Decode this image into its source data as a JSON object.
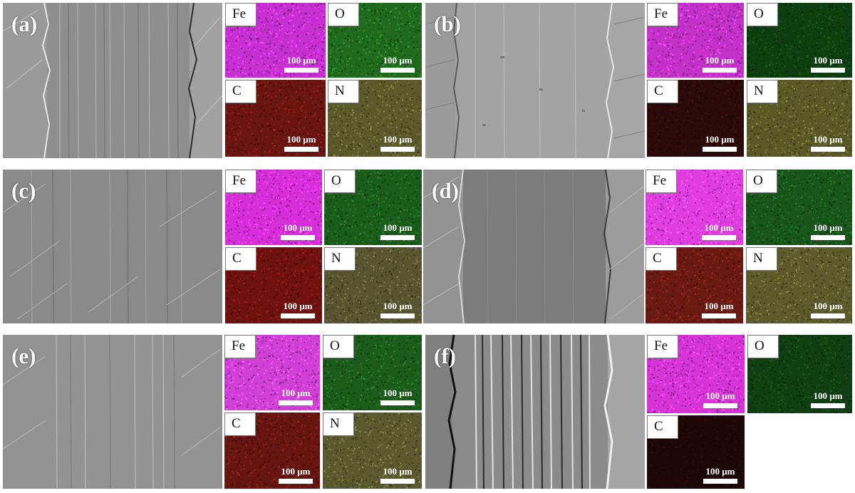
{
  "figure": {
    "panels": [
      {
        "label": "(a)",
        "maps": [
          {
            "element": "Fe",
            "color": "#c62fd2"
          },
          {
            "element": "O",
            "color": "#1f6a1c"
          },
          {
            "element": "C",
            "color": "#6a1510"
          },
          {
            "element": "N",
            "color": "#5b5a2a"
          }
        ]
      },
      {
        "label": "(b)",
        "maps": [
          {
            "element": "Fe",
            "color": "#c331c9"
          },
          {
            "element": "O",
            "color": "#0e3f10"
          },
          {
            "element": "C",
            "color": "#2b0a0a"
          },
          {
            "element": "N",
            "color": "#5a5826"
          }
        ]
      },
      {
        "label": "(c)",
        "maps": [
          {
            "element": "Fe",
            "color": "#d62ed8"
          },
          {
            "element": "O",
            "color": "#1a5c1a"
          },
          {
            "element": "C",
            "color": "#6e120f"
          },
          {
            "element": "N",
            "color": "#575530"
          }
        ]
      },
      {
        "label": "(d)",
        "maps": [
          {
            "element": "Fe",
            "color": "#e03de0"
          },
          {
            "element": "O",
            "color": "#17551a"
          },
          {
            "element": "C",
            "color": "#6a1a12"
          },
          {
            "element": "N",
            "color": "#5d5a2c"
          }
        ]
      },
      {
        "label": "(e)",
        "maps": [
          {
            "element": "Fe",
            "color": "#d03fd6"
          },
          {
            "element": "O",
            "color": "#1b5c1a"
          },
          {
            "element": "C",
            "color": "#661510"
          },
          {
            "element": "N",
            "color": "#5b5a2e"
          }
        ]
      },
      {
        "label": "(f)",
        "maps": [
          {
            "element": "Fe",
            "color": "#d634d6"
          },
          {
            "element": "O",
            "color": "#103f12"
          },
          {
            "element": "C",
            "color": "#1f0708"
          }
        ]
      }
    ],
    "scale_bar_text": "100 μm"
  }
}
